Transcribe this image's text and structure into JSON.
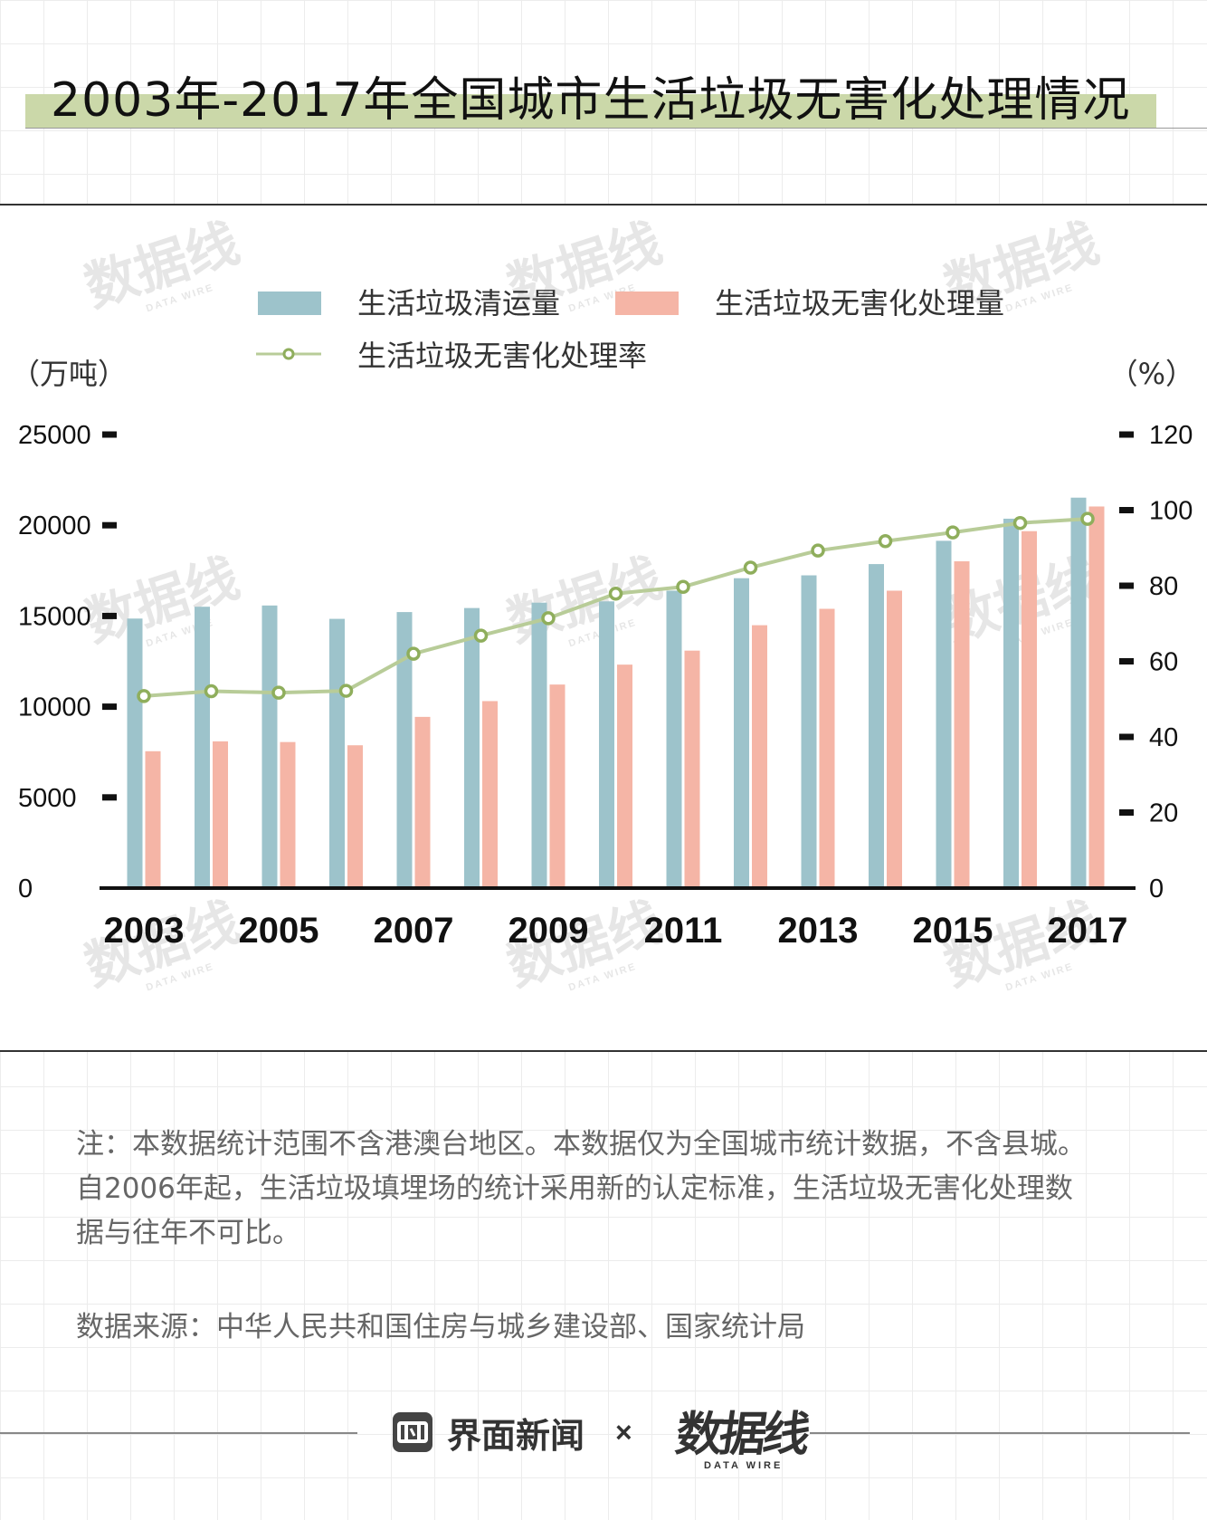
{
  "title": "2003年-2017年全国城市生活垃圾无害化处理情况",
  "chart_data": {
    "type": "bar+line",
    "left_axis_unit": "（万吨）",
    "right_axis_unit": "（%）",
    "left_yticks": [
      0,
      5000,
      10000,
      15000,
      20000,
      25000
    ],
    "left_ytick_labels": [
      "0",
      "5000",
      "10000",
      "15000",
      "20000",
      "25000"
    ],
    "right_yticks": [
      0,
      20,
      40,
      60,
      80,
      100,
      120
    ],
    "right_ytick_labels": [
      "0",
      "20",
      "40",
      "60",
      "80",
      "100",
      "120"
    ],
    "left_ylim": [
      0,
      25000
    ],
    "right_ylim": [
      0,
      120
    ],
    "years": [
      2003,
      2004,
      2005,
      2006,
      2007,
      2008,
      2009,
      2010,
      2011,
      2012,
      2013,
      2014,
      2015,
      2016,
      2017
    ],
    "xtick_labels": [
      "2003",
      "2005",
      "2007",
      "2009",
      "2011",
      "2013",
      "2015",
      "2017"
    ],
    "series": [
      {
        "name": "生活垃圾清运量",
        "kind": "bar",
        "axis": "left",
        "color": "#9dc3cb",
        "values": [
          14857,
          15509,
          15577,
          14841,
          15215,
          15438,
          15734,
          15805,
          16395,
          17081,
          17239,
          17860,
          19142,
          20362,
          21521
        ]
      },
      {
        "name": "生活垃圾无害化处理量",
        "kind": "bar",
        "axis": "left",
        "color": "#f5b5a6",
        "values": [
          7545,
          8089,
          8051,
          7873,
          9438,
          10307,
          11220,
          12318,
          13090,
          14490,
          15394,
          16394,
          18013,
          19674,
          21034
        ]
      },
      {
        "name": "生活垃圾无害化处理率",
        "kind": "line",
        "axis": "right",
        "color": "#b8cc98",
        "marker_color": "#8fae5c",
        "values": [
          50.8,
          52.1,
          51.7,
          52.2,
          62.0,
          66.8,
          71.4,
          77.9,
          79.7,
          84.8,
          89.3,
          91.8,
          94.1,
          96.6,
          97.7
        ]
      }
    ]
  },
  "watermark": {
    "cn": "数据线",
    "en": "DATA WIRE"
  },
  "note": {
    "line1": "注：本数据统计范围不含港澳台地区。本数据仅为全国城市统计数据，不含县城。",
    "line2": "自2006年起，生活垃圾填埋场的统计采用新的认定标准，生活垃圾无害化处理数",
    "line3": "据与往年不可比。"
  },
  "source": "数据来源：中华人民共和国住房与城乡建设部、国家统计局",
  "footer": {
    "brand": "界面新闻",
    "separator": "×",
    "partner_cn": "数据线",
    "partner_en": "DATA WIRE"
  }
}
